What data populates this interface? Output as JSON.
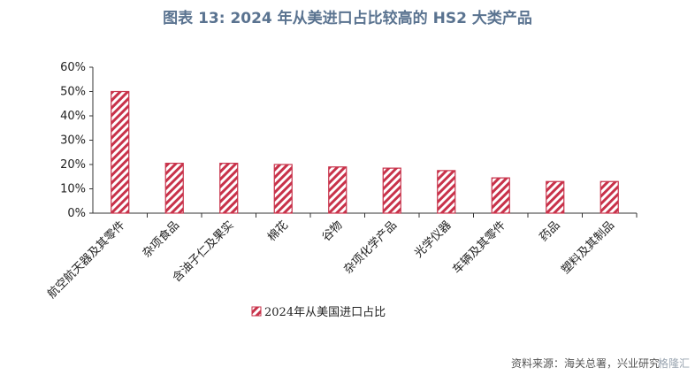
{
  "title": "图表 13: 2024 年从美进口占比较高的 HS2 大类产品",
  "source": "资料来源：海关总署，兴业研究",
  "watermark": "格隆汇",
  "colors": {
    "bar": "#c8324a",
    "stripe_bg": "#ffffff",
    "axis": "#333333"
  },
  "chart_data": {
    "type": "bar",
    "categories": [
      "航空航天器及其零件",
      "杂项食品",
      "含油子仁及果实",
      "棉花",
      "谷物",
      "杂项化学产品",
      "光学仪器",
      "车辆及其零件",
      "药品",
      "塑料及其制品"
    ],
    "series": [
      {
        "name": "2024年从美国进口占比",
        "values": [
          50,
          20.5,
          20.5,
          20,
          19,
          18.5,
          17.5,
          14.5,
          13,
          13
        ]
      }
    ],
    "yticks": [
      "0%",
      "10%",
      "20%",
      "30%",
      "40%",
      "50%",
      "60%"
    ],
    "ylim": [
      0,
      60
    ],
    "grid": false,
    "legend": "bottom"
  }
}
